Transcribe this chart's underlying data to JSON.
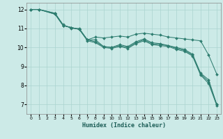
{
  "title": "",
  "xlabel": "Humidex (Indice chaleur)",
  "ylabel": "",
  "bg_color": "#cceae7",
  "grid_color": "#aad4d0",
  "line_color": "#2e7d70",
  "xlim": [
    -0.5,
    23.5
  ],
  "ylim": [
    6.5,
    12.35
  ],
  "xticks": [
    0,
    1,
    2,
    3,
    4,
    5,
    6,
    7,
    8,
    9,
    10,
    11,
    12,
    13,
    14,
    15,
    16,
    17,
    18,
    19,
    20,
    21,
    22,
    23
  ],
  "yticks": [
    7,
    8,
    9,
    10,
    11,
    12
  ],
  "series": [
    {
      "x": [
        0,
        1,
        3,
        4,
        5,
        6,
        7,
        8,
        9,
        10,
        11,
        12,
        13,
        14,
        15,
        16,
        17,
        18,
        19,
        20,
        21,
        22,
        23
      ],
      "y": [
        12,
        12,
        11.8,
        11.2,
        11.0,
        11.0,
        10.4,
        10.55,
        10.5,
        10.55,
        10.6,
        10.55,
        10.7,
        10.75,
        10.7,
        10.65,
        10.55,
        10.5,
        10.45,
        10.4,
        10.35,
        9.6,
        8.6
      ]
    },
    {
      "x": [
        0,
        1,
        3,
        4,
        5,
        6,
        7,
        8,
        9,
        10,
        11,
        12,
        13,
        14,
        15,
        16,
        17,
        18,
        19,
        20,
        21,
        22,
        23
      ],
      "y": [
        12,
        12,
        11.75,
        11.15,
        11.05,
        10.95,
        10.4,
        10.4,
        10.05,
        10.0,
        10.15,
        10.05,
        10.3,
        10.45,
        10.25,
        10.2,
        10.1,
        10.0,
        9.9,
        9.65,
        8.65,
        8.3,
        7.0
      ]
    },
    {
      "x": [
        0,
        1,
        3,
        4,
        5,
        6,
        7,
        8,
        9,
        10,
        11,
        12,
        13,
        14,
        15,
        16,
        17,
        18,
        19,
        20,
        21,
        22,
        23
      ],
      "y": [
        12,
        12,
        11.75,
        11.15,
        11.05,
        10.95,
        10.4,
        10.3,
        10.05,
        10.0,
        10.1,
        10.0,
        10.25,
        10.4,
        10.2,
        10.15,
        10.1,
        9.95,
        9.85,
        9.6,
        8.6,
        8.2,
        7.0
      ]
    },
    {
      "x": [
        0,
        1,
        3,
        4,
        5,
        6,
        7,
        8,
        9,
        10,
        11,
        12,
        13,
        14,
        15,
        16,
        17,
        18,
        19,
        20,
        21,
        22,
        23
      ],
      "y": [
        12,
        12,
        11.8,
        11.15,
        11.05,
        10.95,
        10.35,
        10.25,
        10.0,
        9.95,
        10.05,
        9.95,
        10.2,
        10.35,
        10.15,
        10.1,
        10.05,
        9.9,
        9.8,
        9.55,
        8.55,
        8.1,
        6.95
      ]
    }
  ]
}
